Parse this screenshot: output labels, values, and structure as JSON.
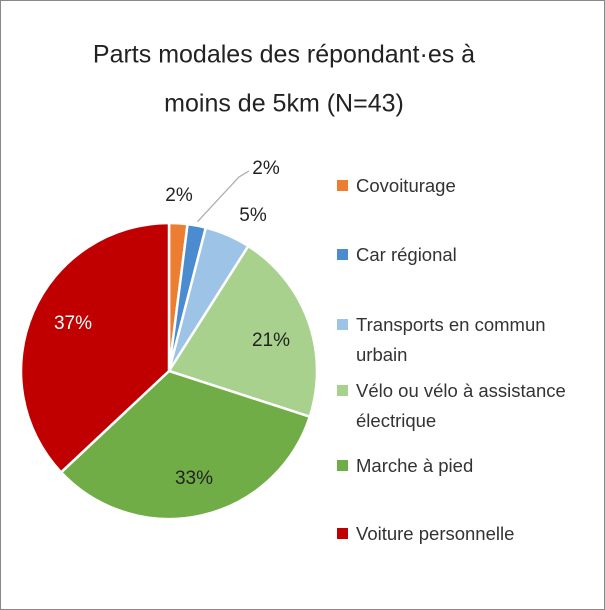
{
  "chart_data": {
    "type": "pie",
    "title": [
      "Parts modales des répondant·es à",
      "moins de 5km (N=43)"
    ],
    "categories": [
      "Covoiturage",
      "Car régional",
      "Transports en commun urbain",
      "Vélo ou vélo à assistance électrique",
      "Marche à pied",
      "Voiture personnelle"
    ],
    "values": [
      2,
      2,
      5,
      21,
      33,
      37
    ],
    "value_labels": [
      "2%",
      "2%",
      "5%",
      "21%",
      "33%",
      "37%"
    ],
    "colors": [
      "#ed7d31",
      "#4a8ccf",
      "#9dc3e6",
      "#a9d18e",
      "#70ad47",
      "#c00000"
    ],
    "legend": "right"
  }
}
